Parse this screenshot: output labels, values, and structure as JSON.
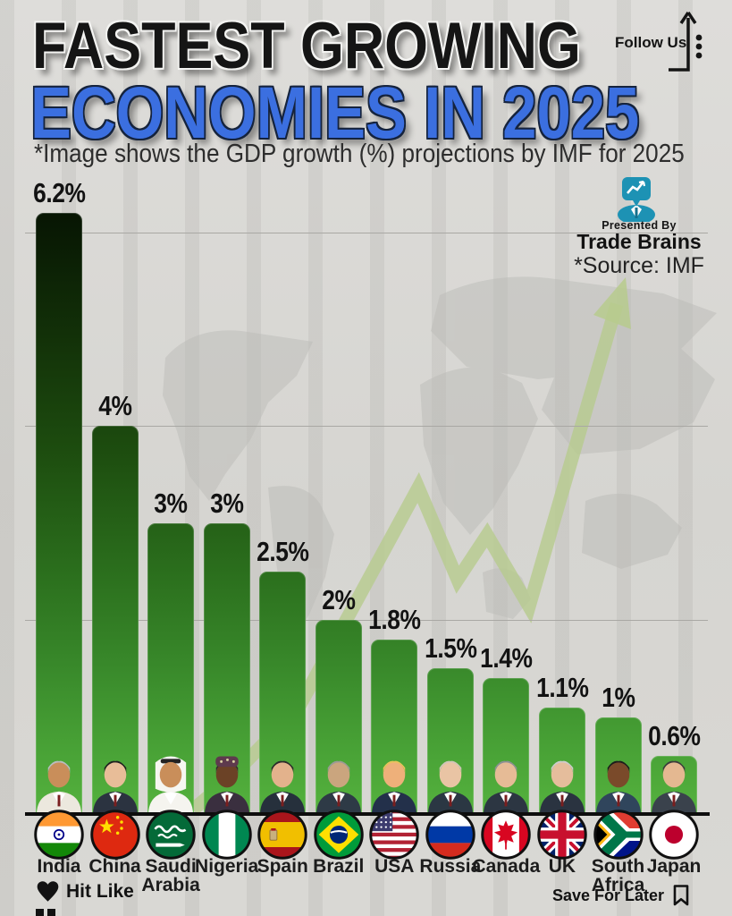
{
  "header": {
    "title_line1": "FASTEST GROWING",
    "title_line2": "ECONOMIES IN 2025",
    "subtitle": "*Image shows the GDP growth (%) projections by IMF for 2025"
  },
  "follow": {
    "label": "Follow Us"
  },
  "brand": {
    "presented_by": "Presented By",
    "name": "Trade Brains",
    "source": "*Source: IMF"
  },
  "chart_data": {
    "type": "bar",
    "title": "Fastest Growing Economies in 2025",
    "subtitle": "GDP growth (%) projections by IMF for 2025",
    "categories": [
      "India",
      "China",
      "Saudi Arabia",
      "Nigeria",
      "Spain",
      "Brazil",
      "USA",
      "Russia",
      "Canada",
      "UK",
      "South Africa",
      "Japan"
    ],
    "values": [
      6.2,
      4,
      3,
      3,
      2.5,
      2,
      1.8,
      1.5,
      1.4,
      1.1,
      1,
      0.6
    ],
    "value_labels": [
      "6.2%",
      "4%",
      "3%",
      "3%",
      "2.5%",
      "2%",
      "1.8%",
      "1.5%",
      "1.4%",
      "1.1%",
      "1%",
      "0.6%"
    ],
    "ylim": [
      0,
      6.5
    ],
    "gridline_interval_pct": 2,
    "grid": "horizontal",
    "legend": "none",
    "flag_icons": [
      "india-flag-icon",
      "china-flag-icon",
      "saudi-arabia-flag-icon",
      "nigeria-flag-icon",
      "spain-flag-icon",
      "brazil-flag-icon",
      "usa-flag-icon",
      "russia-flag-icon",
      "canada-flag-icon",
      "uk-flag-icon",
      "south-africa-flag-icon",
      "japan-flag-icon"
    ],
    "leader_photos": [
      "narendra-modi-photo",
      "xi-jinping-photo",
      "mohammed-bin-salman-photo",
      "bola-tinubu-photo",
      "pedro-sanchez-photo",
      "lula-da-silva-photo",
      "donald-trump-photo",
      "vladimir-putin-photo",
      "mark-carney-photo",
      "keir-starmer-photo",
      "cyril-ramaphosa-photo",
      "shigeru-ishiba-photo"
    ]
  },
  "footer": {
    "hit_like": "Hit Like",
    "save_for_later": "Save For Later"
  },
  "colors": {
    "background": "#d9d8d4",
    "title_blue": "#3b6fe0",
    "bar_gradient_top": "#071503",
    "bar_gradient_bottom": "#55b23e",
    "brand_teal": "#1d92b4",
    "trend_arrow_green": "#b7cb8d",
    "label_black": "#121212"
  }
}
